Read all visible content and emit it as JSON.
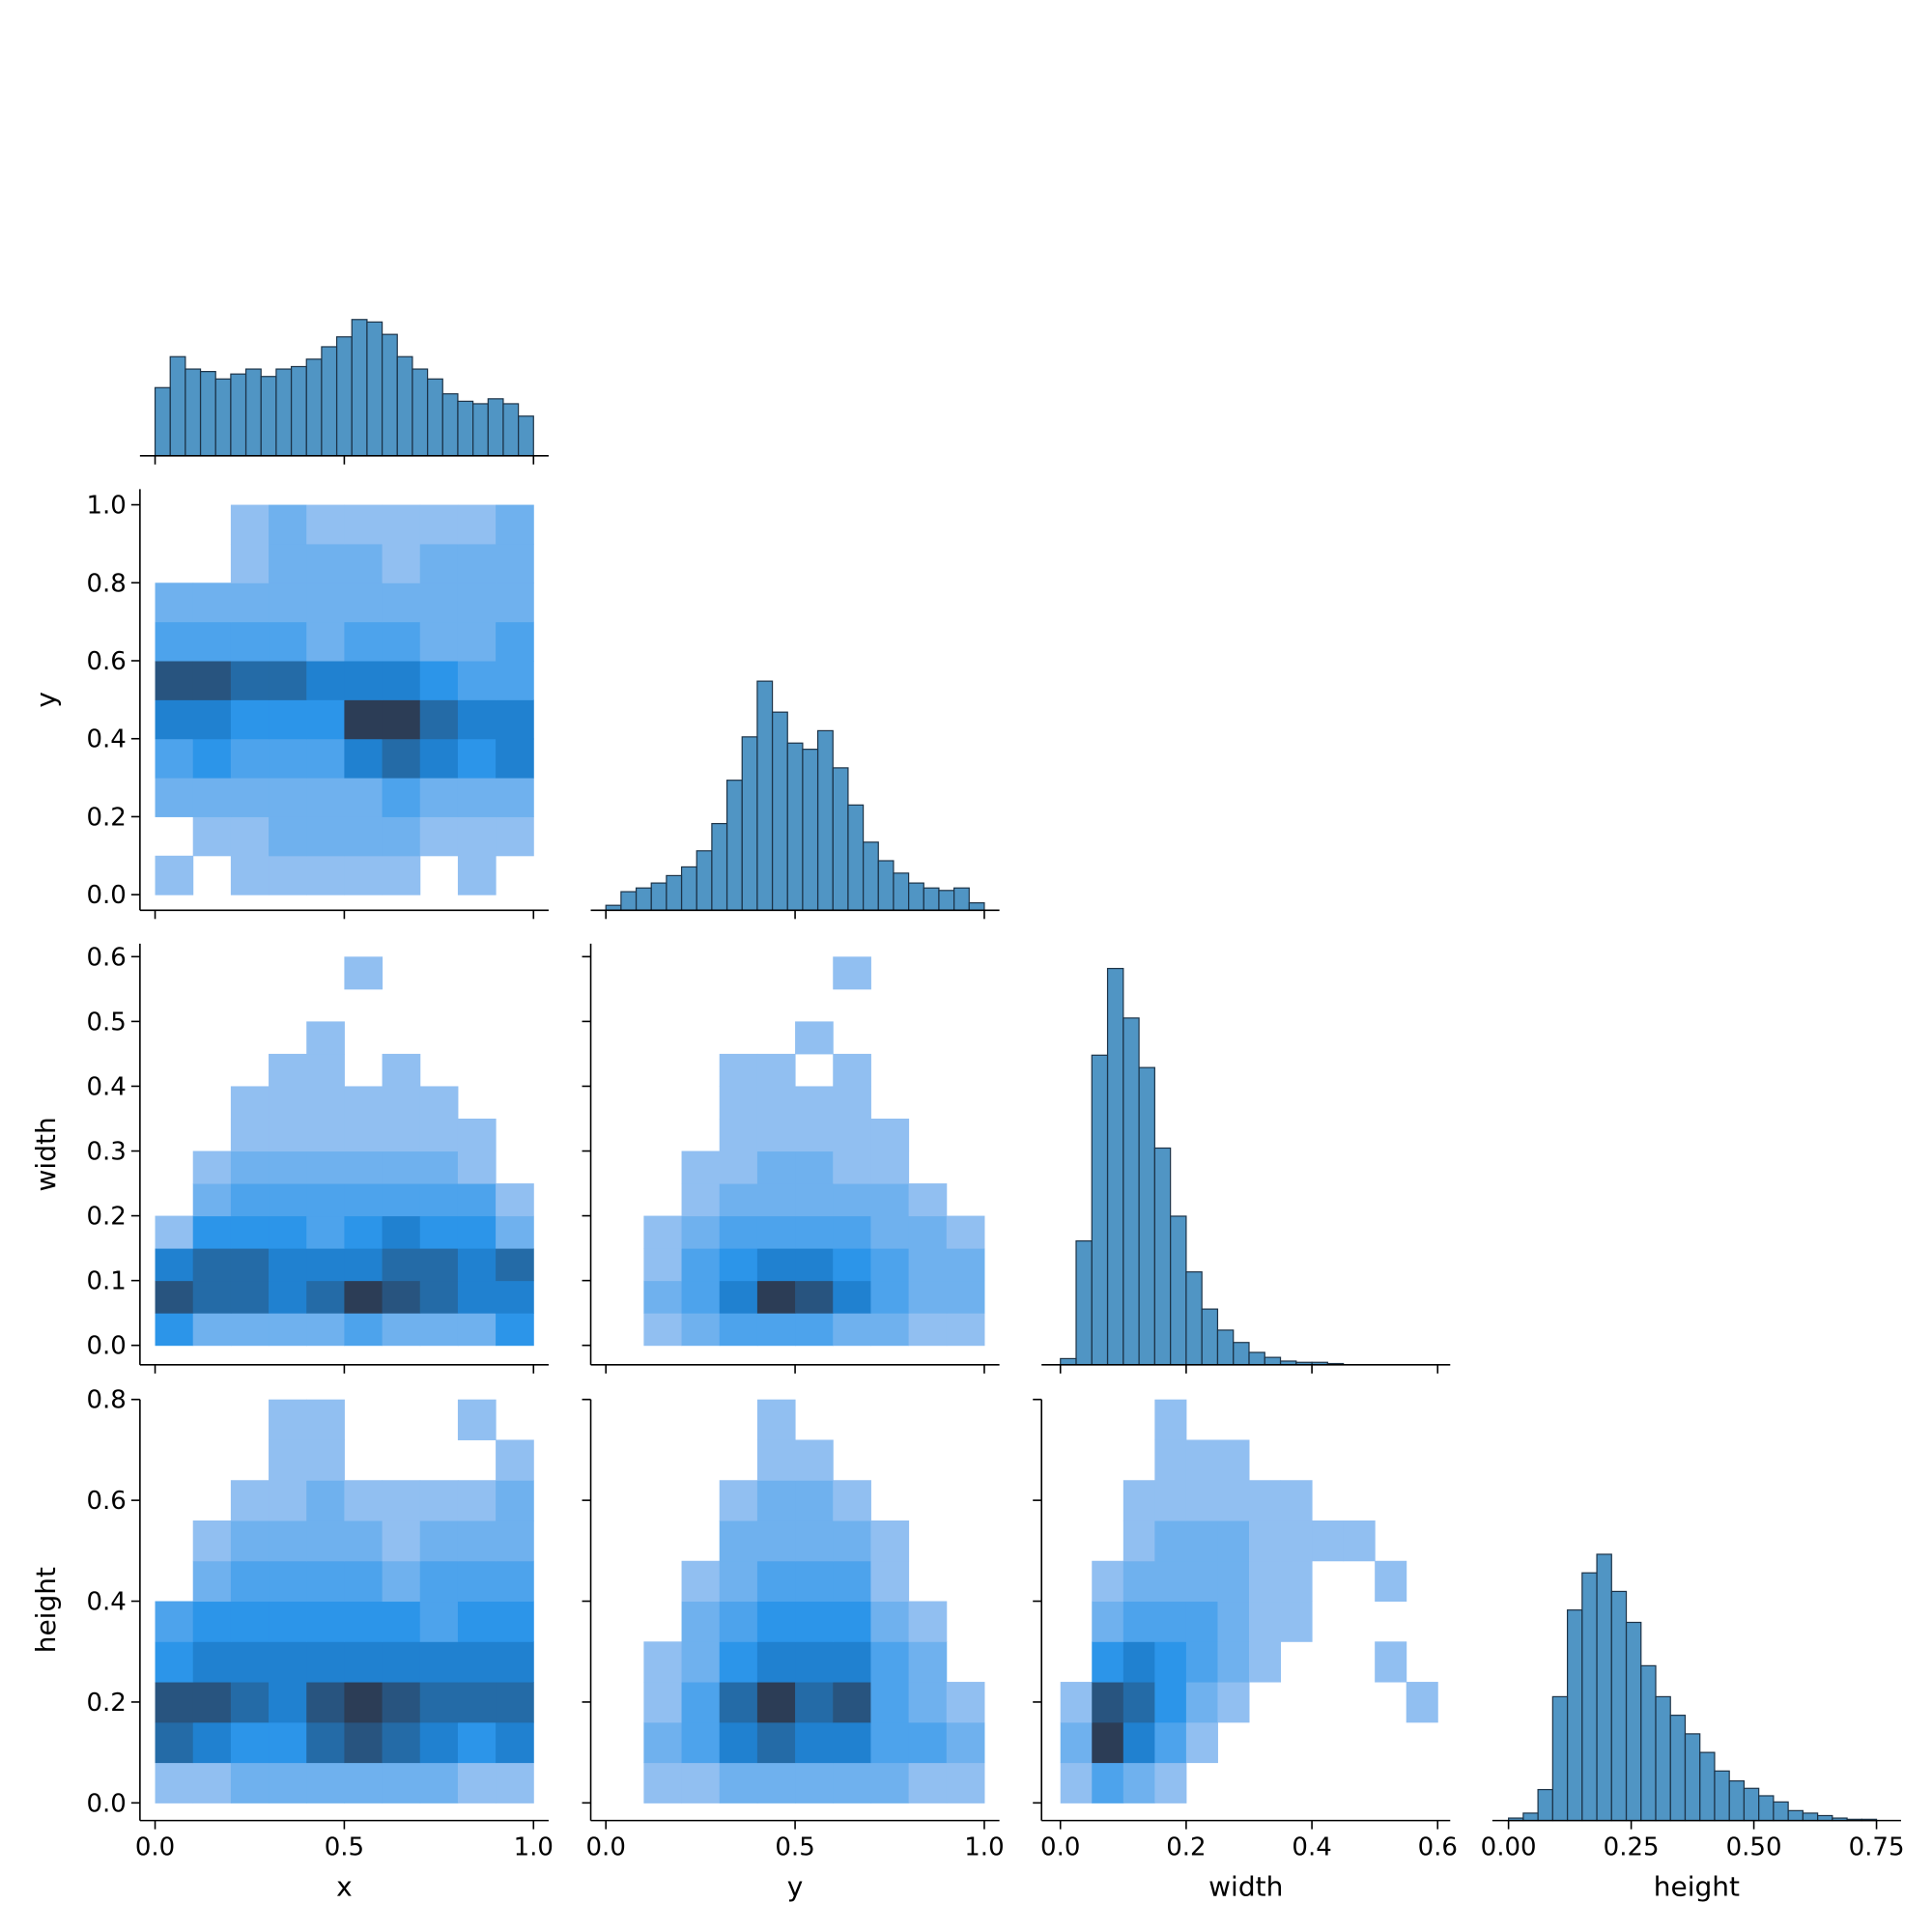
{
  "chart_data": [
    {
      "type": "histogram",
      "color": "#1f77b4",
      "bins": [
        0,
        0.04,
        0.08,
        0.12,
        0.16,
        0.2,
        0.24,
        0.28,
        0.32,
        0.36,
        0.4,
        0.44,
        0.48,
        0.52,
        0.56,
        0.6,
        0.64,
        0.68,
        0.72,
        0.76,
        0.8,
        0.84,
        0.88,
        0.92,
        0.96,
        1.0
      ],
      "values": [
        55,
        80,
        70,
        68,
        62,
        66,
        70,
        64,
        70,
        72,
        78,
        88,
        96,
        110,
        108,
        98,
        80,
        70,
        62,
        50,
        44,
        42,
        46,
        42,
        32
      ],
      "xlim": [
        -0.04,
        1.04
      ],
      "ylim": [
        0,
        340
      ],
      "xticks": [
        {
          "value": 0,
          "label": "0.0"
        },
        0.5,
        {
          "value": 1,
          "label": "1.0"
        }
      ]
    },
    {
      "type": "hist2d",
      "cmap": [
        "#b3cdf3",
        "#1e8fe8",
        "#2c3d56"
      ],
      "xbins": [
        0,
        0.1,
        0.2,
        0.3,
        0.4,
        0.5,
        0.6,
        0.7,
        0.8,
        0.9,
        1.0
      ],
      "ybins": [
        0,
        0.1,
        0.2,
        0.3,
        0.4,
        0.5,
        0.6,
        0.7,
        0.8,
        0.9,
        1.0
      ],
      "values": [
        [
          1,
          0,
          1,
          1,
          1,
          1,
          1,
          0,
          1,
          0
        ],
        [
          0,
          1,
          1,
          2,
          2,
          2,
          2,
          1,
          1,
          1
        ],
        [
          2,
          2,
          2,
          2,
          2,
          2,
          3,
          2,
          2,
          2
        ],
        [
          3,
          4,
          3,
          3,
          3,
          5,
          6,
          5,
          4,
          5
        ],
        [
          5,
          5,
          4,
          4,
          4,
          8,
          8,
          6,
          5,
          5
        ],
        [
          7,
          7,
          6,
          6,
          5,
          5,
          5,
          4,
          3,
          3
        ],
        [
          3,
          3,
          3,
          3,
          2,
          3,
          3,
          2,
          2,
          3
        ],
        [
          2,
          2,
          2,
          2,
          2,
          2,
          2,
          2,
          2,
          2
        ],
        [
          0,
          0,
          1,
          2,
          2,
          2,
          1,
          2,
          2,
          2
        ],
        [
          0,
          0,
          1,
          2,
          1,
          1,
          1,
          1,
          1,
          2
        ]
      ],
      "xlim": [
        -0.04,
        1.04
      ],
      "ylim": [
        -0.04,
        1.04
      ],
      "xticks": [
        {
          "value": 0,
          "label": "0.0"
        },
        0.5,
        {
          "value": 1,
          "label": "1.0"
        }
      ],
      "yticks": [
        {
          "value": 0,
          "label": "0.0"
        },
        0.2,
        0.4,
        0.6,
        0.8,
        {
          "value": 1,
          "label": "1.0"
        }
      ],
      "ylabel": "y"
    },
    {
      "type": "histogram",
      "color": "#1f77b4",
      "bins": [
        0,
        0.04,
        0.08,
        0.12,
        0.16,
        0.2,
        0.24,
        0.28,
        0.32,
        0.36,
        0.4,
        0.44,
        0.48,
        0.52,
        0.56,
        0.6,
        0.64,
        0.68,
        0.72,
        0.76,
        0.8,
        0.84,
        0.88,
        0.92,
        0.96,
        1.0
      ],
      "values": [
        4,
        15,
        18,
        22,
        28,
        35,
        48,
        70,
        105,
        140,
        185,
        160,
        135,
        130,
        145,
        115,
        85,
        55,
        40,
        30,
        22,
        18,
        16,
        18,
        6
      ],
      "xlim": [
        -0.04,
        1.04
      ],
      "ylim": [
        0,
        340
      ],
      "xticks": [
        {
          "value": 0,
          "label": "0.0"
        },
        0.5,
        {
          "value": 1,
          "label": "1.0"
        }
      ]
    },
    {
      "type": "hist2d",
      "cmap": [
        "#b3cdf3",
        "#1e8fe8",
        "#2c3d56"
      ],
      "xbins": [
        0,
        0.1,
        0.2,
        0.3,
        0.4,
        0.5,
        0.6,
        0.7,
        0.8,
        0.9,
        1.0
      ],
      "ybins": [
        0,
        0.05,
        0.1,
        0.15,
        0.2,
        0.25,
        0.3,
        0.35,
        0.4,
        0.45,
        0.5,
        0.55,
        0.6
      ],
      "values": [
        [
          4,
          2,
          2,
          2,
          2,
          3,
          2,
          2,
          2,
          4
        ],
        [
          7,
          6,
          6,
          5,
          6,
          8,
          7,
          6,
          5,
          5
        ],
        [
          5,
          6,
          6,
          5,
          5,
          5,
          6,
          6,
          5,
          6
        ],
        [
          1,
          4,
          4,
          4,
          3,
          4,
          5,
          4,
          4,
          2
        ],
        [
          0,
          2,
          3,
          3,
          3,
          3,
          3,
          3,
          3,
          1
        ],
        [
          0,
          1,
          2,
          2,
          2,
          2,
          2,
          2,
          1,
          0
        ],
        [
          0,
          0,
          1,
          1,
          1,
          1,
          1,
          1,
          1,
          0
        ],
        [
          0,
          0,
          1,
          1,
          1,
          1,
          1,
          1,
          0,
          0
        ],
        [
          0,
          0,
          0,
          1,
          1,
          0,
          1,
          0,
          0,
          0
        ],
        [
          0,
          0,
          0,
          0,
          1,
          0,
          0,
          0,
          0,
          0
        ],
        [
          0,
          0,
          0,
          0,
          0,
          0,
          0,
          0,
          0,
          0
        ],
        [
          0,
          0,
          0,
          0,
          0,
          1,
          0,
          0,
          0,
          0
        ]
      ],
      "xlim": [
        -0.04,
        1.04
      ],
      "ylim": [
        -0.03,
        0.62
      ],
      "xticks": [
        {
          "value": 0,
          "label": "0.0"
        },
        0.5,
        {
          "value": 1,
          "label": "1.0"
        }
      ],
      "yticks": [
        {
          "value": 0,
          "label": "0.0"
        },
        0.1,
        0.2,
        0.3,
        0.4,
        0.5,
        0.6
      ],
      "ylabel": "width"
    },
    {
      "type": "hist2d",
      "cmap": [
        "#b3cdf3",
        "#1e8fe8",
        "#2c3d56"
      ],
      "xbins": [
        0,
        0.1,
        0.2,
        0.3,
        0.4,
        0.5,
        0.6,
        0.7,
        0.8,
        0.9,
        1.0
      ],
      "ybins": [
        0,
        0.05,
        0.1,
        0.15,
        0.2,
        0.25,
        0.3,
        0.35,
        0.4,
        0.45,
        0.5,
        0.55,
        0.6
      ],
      "values": [
        [
          0,
          1,
          2,
          3,
          3,
          3,
          2,
          2,
          1,
          1
        ],
        [
          0,
          2,
          3,
          5,
          8,
          7,
          5,
          3,
          2,
          2
        ],
        [
          0,
          1,
          3,
          4,
          5,
          5,
          4,
          3,
          2,
          2
        ],
        [
          0,
          1,
          2,
          3,
          3,
          3,
          3,
          2,
          2,
          1
        ],
        [
          0,
          0,
          1,
          2,
          2,
          2,
          2,
          2,
          1,
          0
        ],
        [
          0,
          0,
          1,
          1,
          2,
          2,
          1,
          1,
          0,
          0
        ],
        [
          0,
          0,
          0,
          1,
          1,
          1,
          1,
          1,
          0,
          0
        ],
        [
          0,
          0,
          0,
          1,
          1,
          1,
          1,
          0,
          0,
          0
        ],
        [
          0,
          0,
          0,
          1,
          1,
          0,
          1,
          0,
          0,
          0
        ],
        [
          0,
          0,
          0,
          0,
          0,
          1,
          0,
          0,
          0,
          0
        ],
        [
          0,
          0,
          0,
          0,
          0,
          0,
          0,
          0,
          0,
          0
        ],
        [
          0,
          0,
          0,
          0,
          0,
          0,
          1,
          0,
          0,
          0
        ]
      ],
      "xlim": [
        -0.04,
        1.04
      ],
      "ylim": [
        -0.03,
        0.62
      ],
      "xticks": [
        {
          "value": 0,
          "label": "0.0"
        },
        0.5,
        {
          "value": 1,
          "label": "1.0"
        }
      ],
      "yticks": [
        {
          "value": 0,
          "label": "0.0"
        },
        0.1,
        0.2,
        0.3,
        0.4,
        0.5,
        0.6
      ]
    },
    {
      "type": "histogram",
      "color": "#1f77b4",
      "bins": [
        0,
        0.025,
        0.05,
        0.075,
        0.1,
        0.125,
        0.15,
        0.175,
        0.2,
        0.225,
        0.25,
        0.275,
        0.3,
        0.325,
        0.35,
        0.375,
        0.4,
        0.425,
        0.45,
        0.475,
        0.5,
        0.525,
        0.55,
        0.575,
        0.6
      ],
      "values": [
        5,
        100,
        250,
        320,
        280,
        240,
        175,
        120,
        75,
        45,
        28,
        18,
        10,
        6,
        3,
        2,
        2,
        1,
        0,
        0,
        0,
        0,
        0,
        0
      ],
      "xlim": [
        -0.03,
        0.62
      ],
      "ylim": [
        0,
        340
      ],
      "xticks": [
        {
          "value": 0,
          "label": "0.0"
        },
        0.2,
        0.4,
        0.6
      ]
    },
    {
      "type": "hist2d",
      "cmap": [
        "#b3cdf3",
        "#1e8fe8",
        "#2c3d56"
      ],
      "xbins": [
        0,
        0.1,
        0.2,
        0.3,
        0.4,
        0.5,
        0.6,
        0.7,
        0.8,
        0.9,
        1.0
      ],
      "ybins": [
        0,
        0.08,
        0.16,
        0.24,
        0.32,
        0.4,
        0.48,
        0.56,
        0.64,
        0.72,
        0.8
      ],
      "values": [
        [
          1,
          1,
          2,
          2,
          2,
          2,
          2,
          2,
          1,
          1
        ],
        [
          6,
          5,
          4,
          4,
          6,
          7,
          6,
          5,
          4,
          5
        ],
        [
          7,
          7,
          6,
          5,
          7,
          8,
          7,
          6,
          6,
          6
        ],
        [
          4,
          5,
          5,
          5,
          5,
          5,
          5,
          5,
          5,
          5
        ],
        [
          3,
          4,
          4,
          4,
          4,
          4,
          4,
          3,
          4,
          4
        ],
        [
          0,
          2,
          3,
          3,
          3,
          3,
          2,
          3,
          3,
          3
        ],
        [
          0,
          1,
          2,
          2,
          2,
          2,
          1,
          2,
          2,
          2
        ],
        [
          0,
          0,
          1,
          1,
          2,
          1,
          1,
          1,
          1,
          2
        ],
        [
          0,
          0,
          0,
          1,
          1,
          0,
          0,
          0,
          0,
          1
        ],
        [
          0,
          0,
          0,
          1,
          1,
          0,
          0,
          0,
          1,
          0
        ]
      ],
      "xlim": [
        -0.04,
        1.04
      ],
      "ylim": [
        -0.035,
        0.8
      ],
      "xticks": [
        {
          "value": 0,
          "label": "0.0"
        },
        0.5,
        {
          "value": 1,
          "label": "1.0"
        }
      ],
      "yticks": [
        {
          "value": 0,
          "label": "0.0"
        },
        0.2,
        0.4,
        0.6,
        0.8
      ],
      "xlabel": "x",
      "ylabel": "height"
    },
    {
      "type": "hist2d",
      "cmap": [
        "#b3cdf3",
        "#1e8fe8",
        "#2c3d56"
      ],
      "xbins": [
        0,
        0.1,
        0.2,
        0.3,
        0.4,
        0.5,
        0.6,
        0.7,
        0.8,
        0.9,
        1.0
      ],
      "ybins": [
        0,
        0.08,
        0.16,
        0.24,
        0.32,
        0.4,
        0.48,
        0.56,
        0.64,
        0.72,
        0.8
      ],
      "values": [
        [
          0,
          1,
          1,
          2,
          2,
          2,
          2,
          2,
          1,
          1
        ],
        [
          0,
          2,
          3,
          5,
          6,
          5,
          5,
          3,
          3,
          2
        ],
        [
          0,
          1,
          3,
          6,
          8,
          6,
          7,
          3,
          2,
          1
        ],
        [
          0,
          1,
          2,
          4,
          5,
          5,
          5,
          3,
          2,
          0
        ],
        [
          0,
          0,
          2,
          3,
          4,
          4,
          4,
          2,
          1,
          0
        ],
        [
          0,
          0,
          1,
          2,
          3,
          3,
          3,
          1,
          0,
          0
        ],
        [
          0,
          0,
          0,
          2,
          2,
          2,
          2,
          1,
          0,
          0
        ],
        [
          0,
          0,
          0,
          1,
          2,
          2,
          1,
          0,
          0,
          0
        ],
        [
          0,
          0,
          0,
          0,
          1,
          1,
          0,
          0,
          0,
          0
        ],
        [
          0,
          0,
          0,
          0,
          1,
          0,
          0,
          0,
          0,
          0
        ]
      ],
      "xlim": [
        -0.04,
        1.04
      ],
      "ylim": [
        -0.035,
        0.8
      ],
      "xticks": [
        {
          "value": 0,
          "label": "0.0"
        },
        0.5,
        {
          "value": 1,
          "label": "1.0"
        }
      ],
      "yticks": [
        {
          "value": 0,
          "label": "0.0"
        },
        0.2,
        0.4,
        0.6,
        0.8
      ],
      "xlabel": "y"
    },
    {
      "type": "hist2d",
      "cmap": [
        "#b3cdf3",
        "#1e8fe8",
        "#2c3d56"
      ],
      "xbins": [
        0,
        0.05,
        0.1,
        0.15,
        0.2,
        0.25,
        0.3,
        0.35,
        0.4,
        0.45,
        0.5,
        0.55,
        0.6
      ],
      "ybins": [
        0,
        0.08,
        0.16,
        0.24,
        0.32,
        0.4,
        0.48,
        0.56,
        0.64,
        0.72,
        0.8
      ],
      "values": [
        [
          1,
          3,
          2,
          1,
          0,
          0,
          0,
          0,
          0,
          0,
          0,
          0
        ],
        [
          2,
          8,
          5,
          3,
          1,
          0,
          0,
          0,
          0,
          0,
          0,
          0
        ],
        [
          1,
          7,
          6,
          4,
          2,
          1,
          0,
          0,
          0,
          0,
          0,
          1
        ],
        [
          0,
          4,
          5,
          4,
          3,
          2,
          1,
          0,
          0,
          0,
          1,
          0
        ],
        [
          0,
          2,
          3,
          3,
          3,
          2,
          1,
          1,
          0,
          0,
          0,
          0
        ],
        [
          0,
          1,
          2,
          2,
          2,
          2,
          1,
          1,
          0,
          0,
          1,
          0
        ],
        [
          0,
          0,
          1,
          2,
          2,
          2,
          1,
          1,
          1,
          1,
          0,
          0
        ],
        [
          0,
          0,
          1,
          1,
          1,
          1,
          1,
          1,
          0,
          0,
          0,
          0
        ],
        [
          0,
          0,
          0,
          1,
          1,
          1,
          0,
          0,
          0,
          0,
          0,
          0
        ],
        [
          0,
          0,
          0,
          1,
          0,
          0,
          0,
          0,
          0,
          0,
          0,
          0
        ]
      ],
      "xlim": [
        -0.03,
        0.62
      ],
      "ylim": [
        -0.035,
        0.8
      ],
      "xticks": [
        {
          "value": 0,
          "label": "0.0"
        },
        0.2,
        0.4,
        0.6
      ],
      "yticks": [
        {
          "value": 0,
          "label": "0.0"
        },
        0.2,
        0.4,
        0.6,
        0.8
      ],
      "xlabel": "width"
    },
    {
      "type": "histogram",
      "color": "#1f77b4",
      "bins": [
        0,
        0.03,
        0.06,
        0.09,
        0.12,
        0.15,
        0.18,
        0.21,
        0.24,
        0.27,
        0.3,
        0.33,
        0.36,
        0.39,
        0.42,
        0.45,
        0.48,
        0.51,
        0.54,
        0.57,
        0.6,
        0.63,
        0.66,
        0.69,
        0.72,
        0.75
      ],
      "values": [
        2,
        6,
        25,
        100,
        170,
        200,
        215,
        185,
        160,
        125,
        100,
        85,
        70,
        55,
        40,
        32,
        26,
        20,
        15,
        8,
        6,
        4,
        2,
        1,
        1
      ],
      "xlim": [
        -0.033,
        0.8
      ],
      "ylim": [
        0,
        340
      ],
      "xticks": [
        {
          "value": 0,
          "label": "0.00"
        },
        0.25,
        {
          "value": 0.5,
          "label": "0.50"
        },
        {
          "value": 0.75,
          "label": "0.75"
        }
      ],
      "xlabel": "height"
    }
  ]
}
